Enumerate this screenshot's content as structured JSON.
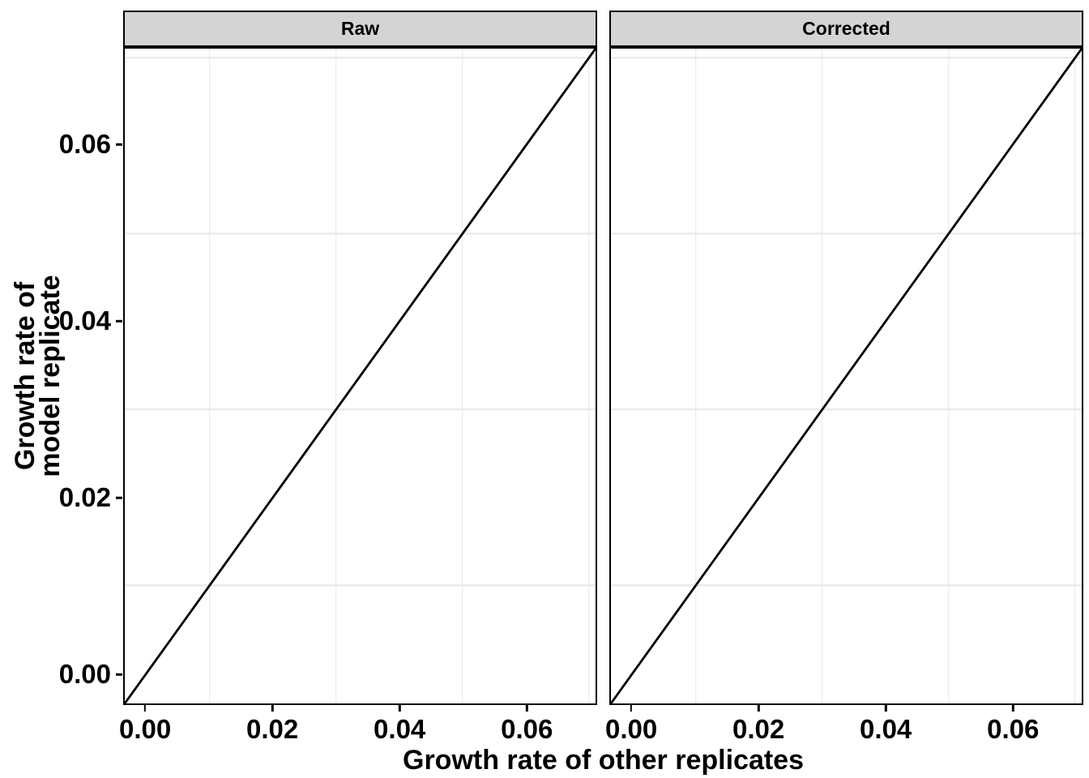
{
  "facets": [
    {
      "label": "Raw"
    },
    {
      "label": "Corrected"
    }
  ],
  "axes": {
    "x": {
      "title": "Growth rate of other replicates",
      "tick_labels": [
        "0.00",
        "0.02",
        "0.04",
        "0.06"
      ],
      "tick_values": [
        0,
        0.02,
        0.04,
        0.06
      ],
      "minor_values": [
        0.01,
        0.03,
        0.05,
        0.07
      ],
      "range": [
        -0.00345,
        0.07105
      ]
    },
    "y": {
      "title_lines": [
        "Growth rate of",
        "model replicate"
      ],
      "title": "Growth rate of model replicate",
      "tick_labels": [
        "0.00",
        "0.02",
        "0.04",
        "0.06"
      ],
      "tick_values": [
        0,
        0.02,
        0.04,
        0.06
      ],
      "minor_values": [
        0.01,
        0.03,
        0.05,
        0.07
      ],
      "range": [
        -0.00345,
        0.07105
      ]
    }
  },
  "style": {
    "background": "#ffffff",
    "strip_fill": "#d4d4d4",
    "strip_border": "#000000",
    "panel_border": "#000000",
    "grid_color": "#e7e7e7",
    "line_color": "#000000",
    "text_color": "#000000",
    "line_width": 2.8
  },
  "chart_data": [
    {
      "type": "line",
      "title": "Raw",
      "series": [
        {
          "name": "identity line y = x",
          "x": [
            -0.00345,
            0.07105
          ],
          "y": [
            -0.00345,
            0.07105
          ]
        }
      ],
      "xlabel": "Growth rate of other replicates",
      "ylabel": "Growth rate of model replicate",
      "xlim": [
        -0.00345,
        0.07105
      ],
      "ylim": [
        -0.00345,
        0.07105
      ],
      "xticks": [
        0,
        0.02,
        0.04,
        0.06
      ],
      "yticks": [
        0,
        0.02,
        0.04,
        0.06
      ],
      "grid": "minor gridlines only at 0.01, 0.03, 0.05, 0.07",
      "legend": "none"
    },
    {
      "type": "line",
      "title": "Corrected",
      "series": [
        {
          "name": "identity line y = x",
          "x": [
            -0.00345,
            0.07105
          ],
          "y": [
            -0.00345,
            0.07105
          ]
        }
      ],
      "xlabel": "Growth rate of other replicates",
      "ylabel": "Growth rate of model replicate",
      "xlim": [
        -0.00345,
        0.07105
      ],
      "ylim": [
        -0.00345,
        0.07105
      ],
      "xticks": [
        0,
        0.02,
        0.04,
        0.06
      ],
      "yticks": [
        0,
        0.02,
        0.04,
        0.06
      ],
      "grid": "minor gridlines only at 0.01, 0.03, 0.05, 0.07",
      "legend": "none"
    }
  ]
}
